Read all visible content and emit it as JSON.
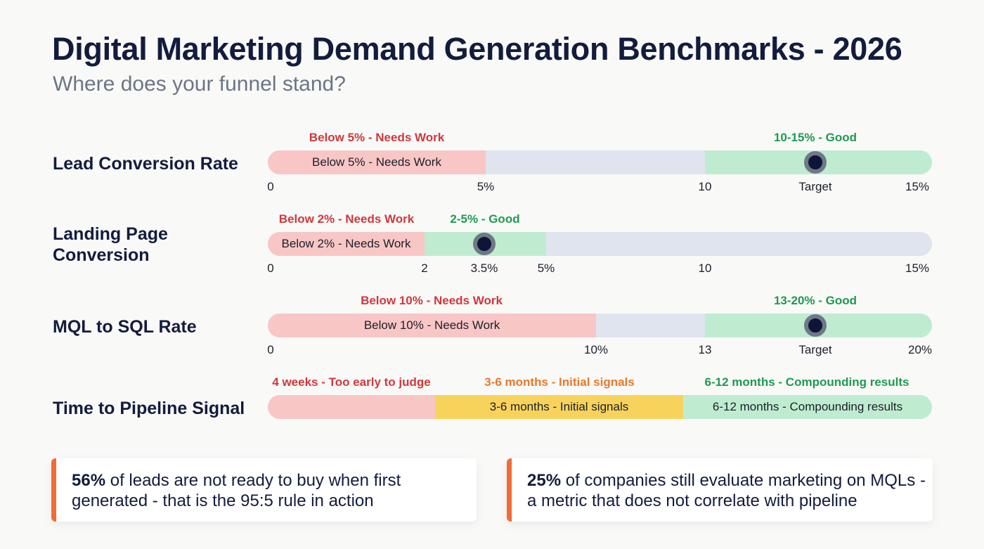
{
  "header": {
    "title": "Digital Marketing Demand Generation Benchmarks - 2026",
    "subtitle": "Where does your funnel stand?"
  },
  "colors": {
    "red_band": "#f9c6c6",
    "gray_band": "#dfe4ee",
    "green_band": "#bfecd0",
    "yellow_band": "#f8d35c",
    "red_text": "#d2373a",
    "green_text": "#1e9a4f",
    "orange_text": "#e8792a",
    "accent": "#f26b36"
  },
  "rows": [
    {
      "label": "Lead Conversion Rate",
      "scale": [
        0,
        15
      ],
      "segments": [
        {
          "from": 0,
          "to": 5,
          "color": "red",
          "text": "Below 5% - Needs Work"
        },
        {
          "from": 5,
          "to": 10,
          "color": "gray",
          "text": ""
        },
        {
          "from": 10,
          "to": 15,
          "color": "green",
          "text": ""
        }
      ],
      "marker": 12.5,
      "band_labels": [
        {
          "text": "Below 5% - Needs Work",
          "color": "red"
        },
        {
          "text": "10-15% - Good",
          "color": "green"
        }
      ],
      "ticks": [
        "0",
        "5%",
        "10",
        "Target",
        "15%"
      ]
    },
    {
      "label": "Landing Page Conversion",
      "scale": [
        0,
        15
      ],
      "segments": [
        {
          "from": 0,
          "to": 2,
          "color": "red",
          "text": "Below 2% - Needs Work"
        },
        {
          "from": 2,
          "to": 5,
          "color": "green",
          "text": ""
        },
        {
          "from": 5,
          "to": 15,
          "color": "gray",
          "text": ""
        }
      ],
      "marker": 3.5,
      "band_labels": [
        {
          "text": "Below 2% - Needs Work",
          "color": "red"
        },
        {
          "text": "2-5% - Good",
          "color": "green"
        }
      ],
      "ticks": [
        "0",
        "2",
        "3.5%",
        "5%",
        "10",
        "15%"
      ]
    },
    {
      "label": "MQL to SQL Rate",
      "scale": [
        0,
        20
      ],
      "segments": [
        {
          "from": 0,
          "to": 10,
          "color": "red",
          "text": "Below 10% - Needs Work"
        },
        {
          "from": 10,
          "to": 13,
          "color": "gray",
          "text": ""
        },
        {
          "from": 13,
          "to": 20,
          "color": "green",
          "text": ""
        }
      ],
      "marker": 16.5,
      "band_labels": [
        {
          "text": "Below 10% - Needs Work",
          "color": "red"
        },
        {
          "text": "13-20% - Good",
          "color": "green"
        }
      ],
      "ticks": [
        "0",
        "10%",
        "13",
        "Target",
        "20%"
      ]
    },
    {
      "label": "Time to Pipeline Signal",
      "segments": [
        {
          "color": "red",
          "text": ""
        },
        {
          "color": "yellow",
          "text": "3-6 months - Initial signals"
        },
        {
          "color": "green",
          "text": "6-12 months - Compounding results"
        }
      ],
      "band_labels": [
        {
          "text": "4 weeks - Too early to judge",
          "color": "red"
        },
        {
          "text": "3-6 months - Initial signals",
          "color": "orange"
        },
        {
          "text": "6-12 months - Compounding results",
          "color": "green"
        }
      ],
      "ticks": []
    }
  ],
  "callouts": [
    {
      "stat": "56%",
      "text": " of leads are not ready to buy when first generated - that is the 95:5 rule in action"
    },
    {
      "stat": "25%",
      "text": " of companies still evaluate marketing on MQLs - a metric that does not correlate with pipeline"
    }
  ]
}
